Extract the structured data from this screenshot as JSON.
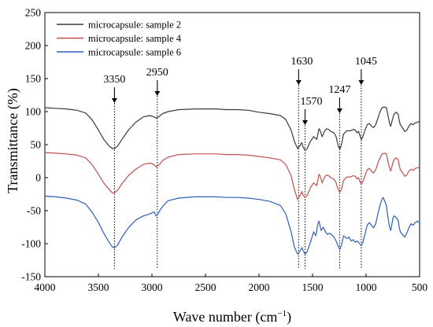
{
  "chart_data": {
    "type": "line",
    "xlabel": "Wave number (cm",
    "xlabel_sup": "−1",
    "xlabel_tail": ")",
    "ylabel": "Transmittance (%)",
    "xlim": [
      4000,
      500
    ],
    "ylim": [
      -150,
      250
    ],
    "x_reversed": true,
    "xticks": [
      4000,
      3500,
      3000,
      2500,
      2000,
      1500,
      1000,
      500
    ],
    "yticks": [
      -150,
      -100,
      -50,
      0,
      50,
      100,
      150,
      200,
      250
    ],
    "grid": false,
    "legend_position": "top-left",
    "series": [
      {
        "name": "microcapsule: sample 2",
        "color": "#3a3a3a",
        "points": [
          [
            4000,
            106
          ],
          [
            3900,
            105
          ],
          [
            3800,
            104
          ],
          [
            3700,
            102
          ],
          [
            3620,
            98
          ],
          [
            3560,
            88
          ],
          [
            3500,
            72
          ],
          [
            3450,
            58
          ],
          [
            3400,
            48
          ],
          [
            3370,
            44
          ],
          [
            3350,
            44
          ],
          [
            3320,
            48
          ],
          [
            3280,
            58
          ],
          [
            3220,
            72
          ],
          [
            3150,
            84
          ],
          [
            3080,
            92
          ],
          [
            3020,
            94
          ],
          [
            2980,
            92
          ],
          [
            2960,
            90
          ],
          [
            2930,
            93
          ],
          [
            2900,
            97
          ],
          [
            2850,
            100
          ],
          [
            2750,
            103
          ],
          [
            2600,
            104
          ],
          [
            2400,
            104
          ],
          [
            2300,
            103
          ],
          [
            2200,
            103
          ],
          [
            2100,
            102
          ],
          [
            2000,
            99
          ],
          [
            1900,
            97
          ],
          [
            1800,
            94
          ],
          [
            1750,
            88
          ],
          [
            1700,
            72
          ],
          [
            1670,
            55
          ],
          [
            1640,
            44
          ],
          [
            1620,
            48
          ],
          [
            1600,
            53
          ],
          [
            1590,
            47
          ],
          [
            1570,
            41
          ],
          [
            1550,
            44
          ],
          [
            1520,
            55
          ],
          [
            1490,
            62
          ],
          [
            1460,
            58
          ],
          [
            1440,
            74
          ],
          [
            1430,
            72
          ],
          [
            1410,
            62
          ],
          [
            1390,
            70
          ],
          [
            1370,
            74
          ],
          [
            1350,
            73
          ],
          [
            1330,
            70
          ],
          [
            1300,
            68
          ],
          [
            1280,
            62
          ],
          [
            1260,
            48
          ],
          [
            1245,
            43
          ],
          [
            1230,
            50
          ],
          [
            1210,
            66
          ],
          [
            1180,
            71
          ],
          [
            1150,
            71
          ],
          [
            1120,
            73
          ],
          [
            1100,
            72
          ],
          [
            1085,
            68
          ],
          [
            1070,
            70
          ],
          [
            1060,
            65
          ],
          [
            1045,
            58
          ],
          [
            1030,
            62
          ],
          [
            1010,
            72
          ],
          [
            990,
            80
          ],
          [
            970,
            82
          ],
          [
            950,
            78
          ],
          [
            930,
            76
          ],
          [
            910,
            80
          ],
          [
            890,
            90
          ],
          [
            870,
            100
          ],
          [
            850,
            106
          ],
          [
            830,
            107
          ],
          [
            810,
            106
          ],
          [
            800,
            98
          ],
          [
            780,
            82
          ],
          [
            770,
            78
          ],
          [
            760,
            84
          ],
          [
            750,
            90
          ],
          [
            740,
            96
          ],
          [
            720,
            99
          ],
          [
            700,
            96
          ],
          [
            690,
            86
          ],
          [
            680,
            80
          ],
          [
            660,
            76
          ],
          [
            640,
            70
          ],
          [
            620,
            72
          ],
          [
            600,
            78
          ],
          [
            580,
            82
          ],
          [
            560,
            80
          ],
          [
            540,
            83
          ],
          [
            520,
            84
          ],
          [
            500,
            85
          ]
        ]
      },
      {
        "name": "microcapsule: sample 4",
        "color": "#c0504d",
        "points": [
          [
            4000,
            38
          ],
          [
            3900,
            37
          ],
          [
            3800,
            36
          ],
          [
            3700,
            34
          ],
          [
            3620,
            30
          ],
          [
            3560,
            20
          ],
          [
            3500,
            5
          ],
          [
            3450,
            -8
          ],
          [
            3400,
            -18
          ],
          [
            3370,
            -23
          ],
          [
            3350,
            -23
          ],
          [
            3320,
            -19
          ],
          [
            3280,
            -9
          ],
          [
            3220,
            3
          ],
          [
            3150,
            13
          ],
          [
            3080,
            20
          ],
          [
            3020,
            22
          ],
          [
            2980,
            20
          ],
          [
            2960,
            16
          ],
          [
            2930,
            20
          ],
          [
            2900,
            26
          ],
          [
            2850,
            31
          ],
          [
            2750,
            35
          ],
          [
            2600,
            36
          ],
          [
            2400,
            36
          ],
          [
            2300,
            35
          ],
          [
            2200,
            35
          ],
          [
            2100,
            34
          ],
          [
            2000,
            32
          ],
          [
            1900,
            30
          ],
          [
            1800,
            27
          ],
          [
            1750,
            20
          ],
          [
            1700,
            3
          ],
          [
            1670,
            -18
          ],
          [
            1640,
            -33
          ],
          [
            1620,
            -28
          ],
          [
            1600,
            -21
          ],
          [
            1590,
            -26
          ],
          [
            1570,
            -30
          ],
          [
            1550,
            -27
          ],
          [
            1520,
            -15
          ],
          [
            1490,
            -8
          ],
          [
            1460,
            -12
          ],
          [
            1440,
            5
          ],
          [
            1430,
            3
          ],
          [
            1410,
            -8
          ],
          [
            1390,
            0
          ],
          [
            1370,
            4
          ],
          [
            1350,
            3
          ],
          [
            1330,
            0
          ],
          [
            1300,
            -2
          ],
          [
            1280,
            -8
          ],
          [
            1260,
            -18
          ],
          [
            1245,
            -22
          ],
          [
            1230,
            -18
          ],
          [
            1210,
            -4
          ],
          [
            1180,
            1
          ],
          [
            1150,
            1
          ],
          [
            1120,
            3
          ],
          [
            1100,
            2
          ],
          [
            1085,
            -2
          ],
          [
            1070,
            0
          ],
          [
            1060,
            -5
          ],
          [
            1045,
            -10
          ],
          [
            1030,
            -6
          ],
          [
            1010,
            3
          ],
          [
            990,
            12
          ],
          [
            970,
            14
          ],
          [
            950,
            10
          ],
          [
            930,
            7
          ],
          [
            910,
            12
          ],
          [
            890,
            22
          ],
          [
            870,
            30
          ],
          [
            850,
            36
          ],
          [
            830,
            37
          ],
          [
            810,
            36
          ],
          [
            800,
            28
          ],
          [
            780,
            14
          ],
          [
            770,
            10
          ],
          [
            760,
            16
          ],
          [
            750,
            22
          ],
          [
            740,
            27
          ],
          [
            720,
            30
          ],
          [
            700,
            27
          ],
          [
            690,
            18
          ],
          [
            680,
            12
          ],
          [
            660,
            8
          ],
          [
            640,
            2
          ],
          [
            620,
            4
          ],
          [
            600,
            10
          ],
          [
            580,
            13
          ],
          [
            560,
            11
          ],
          [
            540,
            14
          ],
          [
            520,
            15
          ],
          [
            500,
            16
          ]
        ]
      },
      {
        "name": "microcapsule: sample 6",
        "color": "#2e5fb8",
        "points": [
          [
            4000,
            -28
          ],
          [
            3900,
            -29
          ],
          [
            3800,
            -31
          ],
          [
            3700,
            -34
          ],
          [
            3620,
            -40
          ],
          [
            3560,
            -52
          ],
          [
            3500,
            -68
          ],
          [
            3450,
            -84
          ],
          [
            3400,
            -98
          ],
          [
            3370,
            -105
          ],
          [
            3350,
            -106
          ],
          [
            3320,
            -102
          ],
          [
            3280,
            -90
          ],
          [
            3220,
            -76
          ],
          [
            3150,
            -64
          ],
          [
            3080,
            -58
          ],
          [
            3020,
            -55
          ],
          [
            2980,
            -52
          ],
          [
            2960,
            -58
          ],
          [
            2940,
            -54
          ],
          [
            2920,
            -48
          ],
          [
            2880,
            -40
          ],
          [
            2850,
            -35
          ],
          [
            2750,
            -31
          ],
          [
            2600,
            -29
          ],
          [
            2400,
            -29
          ],
          [
            2300,
            -30
          ],
          [
            2200,
            -30
          ],
          [
            2100,
            -31
          ],
          [
            2000,
            -33
          ],
          [
            1900,
            -36
          ],
          [
            1800,
            -42
          ],
          [
            1750,
            -55
          ],
          [
            1700,
            -82
          ],
          [
            1670,
            -105
          ],
          [
            1640,
            -116
          ],
          [
            1620,
            -112
          ],
          [
            1600,
            -106
          ],
          [
            1590,
            -110
          ],
          [
            1570,
            -116
          ],
          [
            1550,
            -112
          ],
          [
            1520,
            -98
          ],
          [
            1490,
            -82
          ],
          [
            1470,
            -88
          ],
          [
            1450,
            -70
          ],
          [
            1440,
            -66
          ],
          [
            1420,
            -80
          ],
          [
            1400,
            -75
          ],
          [
            1380,
            -82
          ],
          [
            1360,
            -86
          ],
          [
            1340,
            -84
          ],
          [
            1320,
            -87
          ],
          [
            1300,
            -90
          ],
          [
            1280,
            -96
          ],
          [
            1260,
            -104
          ],
          [
            1245,
            -109
          ],
          [
            1230,
            -102
          ],
          [
            1210,
            -88
          ],
          [
            1180,
            -92
          ],
          [
            1160,
            -90
          ],
          [
            1140,
            -96
          ],
          [
            1120,
            -94
          ],
          [
            1100,
            -98
          ],
          [
            1080,
            -96
          ],
          [
            1060,
            -100
          ],
          [
            1045,
            -103
          ],
          [
            1030,
            -98
          ],
          [
            1010,
            -86
          ],
          [
            990,
            -72
          ],
          [
            970,
            -68
          ],
          [
            950,
            -72
          ],
          [
            930,
            -76
          ],
          [
            910,
            -70
          ],
          [
            890,
            -55
          ],
          [
            870,
            -42
          ],
          [
            850,
            -32
          ],
          [
            840,
            -30
          ],
          [
            830,
            -34
          ],
          [
            810,
            -42
          ],
          [
            800,
            -56
          ],
          [
            780,
            -75
          ],
          [
            770,
            -80
          ],
          [
            760,
            -72
          ],
          [
            750,
            -62
          ],
          [
            740,
            -58
          ],
          [
            720,
            -60
          ],
          [
            700,
            -65
          ],
          [
            690,
            -76
          ],
          [
            680,
            -82
          ],
          [
            660,
            -86
          ],
          [
            640,
            -90
          ],
          [
            620,
            -84
          ],
          [
            600,
            -76
          ],
          [
            580,
            -70
          ],
          [
            560,
            -72
          ],
          [
            540,
            -68
          ],
          [
            520,
            -66
          ],
          [
            500,
            -68
          ]
        ]
      }
    ],
    "annotations": [
      {
        "label": "3350",
        "x": 3350
      },
      {
        "label": "2950",
        "x": 2950
      },
      {
        "label": "1630",
        "x": 1630
      },
      {
        "label": "1570",
        "x": 1570
      },
      {
        "label": "1247",
        "x": 1247
      },
      {
        "label": "1045",
        "x": 1045
      }
    ]
  }
}
